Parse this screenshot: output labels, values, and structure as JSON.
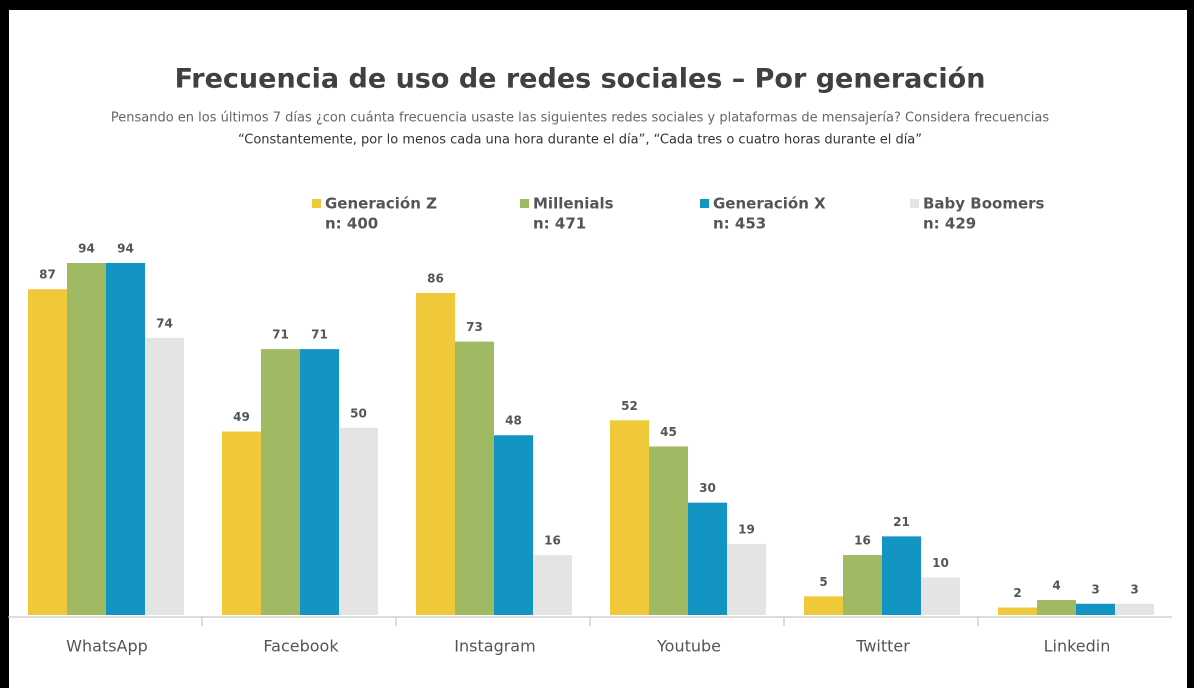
{
  "chart_data": {
    "type": "bar",
    "title": "Frecuencia de uso de redes sociales – Por generación",
    "subtitle": [
      "Pensando en los últimos 7 días ¿con cuánta frecuencia usaste las siguientes redes sociales y plataformas de mensajería? Considera frecuencias",
      "“Constantemente, por lo menos cada una hora durante el día”, “Cada tres o cuatro horas durante el día”"
    ],
    "categories": [
      "WhatsApp",
      "Facebook",
      "Instagram",
      "Youtube",
      "Twitter",
      "Linkedin"
    ],
    "series": [
      {
        "name": "Generación Z",
        "n": "n: 400",
        "color": "#f0c93a",
        "values": [
          87,
          49,
          86,
          52,
          5,
          2
        ]
      },
      {
        "name": "Millenials",
        "n": "n: 471",
        "color": "#9fba62",
        "values": [
          94,
          71,
          73,
          45,
          16,
          4
        ]
      },
      {
        "name": "Generación X",
        "n": "n: 453",
        "color": "#1295c2",
        "values": [
          94,
          71,
          48,
          30,
          21,
          3
        ]
      },
      {
        "name": "Baby Boomers",
        "n": "n: 429",
        "color": "#e4e4e4",
        "values": [
          74,
          50,
          16,
          19,
          10,
          3
        ]
      }
    ],
    "ylim": [
      0,
      100
    ]
  }
}
